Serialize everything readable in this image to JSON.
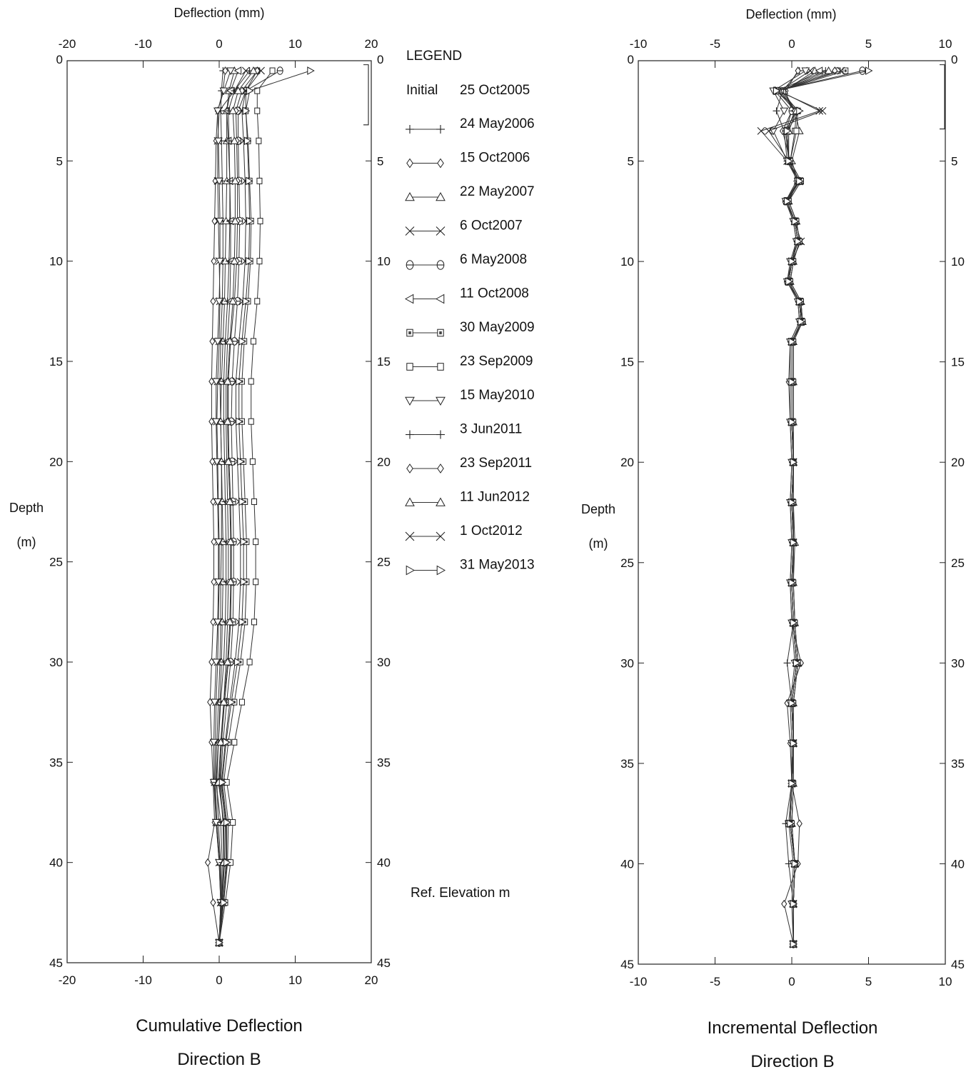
{
  "legend": {
    "title": "LEGEND",
    "initial_label": "Initial",
    "initial_date": "25 Oct2005",
    "entries": [
      {
        "label": "24 May2006",
        "marker": "plus"
      },
      {
        "label": "15 Oct2006",
        "marker": "diamond"
      },
      {
        "label": "22 May2007",
        "marker": "triangle-up"
      },
      {
        "label": "6 Oct2007",
        "marker": "x"
      },
      {
        "label": "6 May2008",
        "marker": "octagon"
      },
      {
        "label": "11 Oct2008",
        "marker": "triangle-left"
      },
      {
        "label": "30 May2009",
        "marker": "square-dot"
      },
      {
        "label": "23 Sep2009",
        "marker": "square"
      },
      {
        "label": "15 May2010",
        "marker": "triangle-down"
      },
      {
        "label": "3 Jun2011",
        "marker": "plus"
      },
      {
        "label": "23 Sep2011",
        "marker": "diamond"
      },
      {
        "label": "11 Jun2012",
        "marker": "triangle-up"
      },
      {
        "label": "1 Oct2012",
        "marker": "x"
      },
      {
        "label": "31 May2013",
        "marker": "triangle-right"
      }
    ],
    "ref_elevation": "Ref. Elevation m"
  },
  "chart_data": [
    {
      "type": "line",
      "title": "Cumulative Deflection",
      "subtitle": "Direction  B",
      "xlabel": "Deflection (mm)",
      "ylabel": "Depth",
      "ylabel_unit": "(m)",
      "xlim": [
        -20,
        20
      ],
      "ylim": [
        0,
        45
      ],
      "y_inverted": true,
      "xticks": [
        -20,
        -10,
        0,
        10,
        20
      ],
      "yticks": [
        0,
        5,
        10,
        15,
        20,
        25,
        30,
        35,
        40,
        45
      ],
      "grid": false,
      "bracket_depth_range": [
        0.2,
        3.2
      ],
      "depth": [
        0.5,
        1.5,
        2.5,
        4,
        6,
        8,
        10,
        12,
        14,
        16,
        18,
        20,
        22,
        24,
        26,
        28,
        30,
        32,
        34,
        36,
        38,
        40,
        42,
        44
      ],
      "series": [
        {
          "name": "24 May2006",
          "values": [
            0.5,
            0.3,
            0.2,
            0.3,
            0.4,
            0.5,
            0.5,
            0.4,
            0.2,
            0.1,
            0.2,
            0.3,
            0.3,
            0.3,
            0.2,
            0.2,
            0.1,
            -0.1,
            -0.3,
            -0.5,
            -0.3,
            0.1,
            0.2,
            0
          ]
        },
        {
          "name": "15 Oct2006",
          "values": [
            0.8,
            0.5,
            -0.2,
            -0.4,
            -0.5,
            -0.6,
            -0.7,
            -0.8,
            -0.9,
            -1.0,
            -1.0,
            -0.9,
            -0.8,
            -0.7,
            -0.7,
            -0.8,
            -1.0,
            -1.2,
            -1.0,
            -0.8,
            -0.6,
            -1.5,
            -0.8,
            0
          ]
        },
        {
          "name": "22 May2007",
          "values": [
            2.0,
            1.3,
            1.0,
            1.0,
            1.0,
            0.9,
            0.8,
            0.7,
            0.5,
            0.3,
            0.2,
            0.3,
            0.4,
            0.5,
            0.5,
            0.4,
            0.3,
            0.1,
            -0.1,
            -0.3,
            -0.1,
            0.2,
            0.3,
            0
          ]
        },
        {
          "name": "6 Oct2007",
          "values": [
            3.5,
            2.0,
            0.0,
            -0.2,
            -0.2,
            -0.1,
            0.0,
            0.1,
            0.0,
            -0.2,
            -0.3,
            -0.2,
            -0.1,
            0.0,
            0.0,
            -0.1,
            -0.2,
            -0.4,
            -0.5,
            -0.6,
            -0.4,
            0.0,
            0.2,
            0
          ]
        },
        {
          "name": "6 May2008",
          "values": [
            8.0,
            3.5,
            2.5,
            2.5,
            2.6,
            2.7,
            2.6,
            2.4,
            2.0,
            1.7,
            1.6,
            1.7,
            1.8,
            1.9,
            1.9,
            1.8,
            1.5,
            1.0,
            0.5,
            0.2,
            0.8,
            0.7,
            0.4,
            0
          ]
        },
        {
          "name": "11 Oct2008",
          "values": [
            2.5,
            1.5,
            1.0,
            1.2,
            1.4,
            1.5,
            1.5,
            1.4,
            1.1,
            0.9,
            0.9,
            1.0,
            1.1,
            1.2,
            1.2,
            1.1,
            0.9,
            0.6,
            0.3,
            0.1,
            0.5,
            0.6,
            0.3,
            0
          ]
        },
        {
          "name": "30 May2009",
          "values": [
            5.0,
            3.5,
            3.5,
            3.8,
            4.0,
            4.2,
            4.1,
            3.8,
            3.3,
            3.0,
            3.0,
            3.2,
            3.4,
            3.6,
            3.6,
            3.4,
            2.8,
            2.0,
            1.2,
            0.6,
            1.2,
            1.1,
            0.6,
            0
          ]
        },
        {
          "name": "23 Sep2009",
          "values": [
            7.0,
            5.0,
            5.0,
            5.2,
            5.3,
            5.4,
            5.3,
            5.0,
            4.5,
            4.2,
            4.2,
            4.4,
            4.6,
            4.8,
            4.8,
            4.6,
            4.0,
            3.0,
            2.0,
            1.0,
            1.8,
            1.5,
            0.8,
            0
          ]
        },
        {
          "name": "15 May2010",
          "values": [
            1.5,
            0.6,
            -0.2,
            -0.1,
            0.0,
            0.1,
            0.1,
            0.0,
            -0.2,
            -0.4,
            -0.4,
            -0.3,
            -0.2,
            -0.1,
            -0.1,
            -0.2,
            -0.4,
            -0.6,
            -0.7,
            -0.7,
            -0.4,
            0.0,
            0.2,
            0
          ]
        },
        {
          "name": "3 Jun2011",
          "values": [
            4.0,
            2.0,
            1.2,
            1.3,
            1.4,
            1.4,
            1.3,
            1.1,
            0.8,
            0.6,
            0.6,
            0.7,
            0.8,
            0.9,
            0.9,
            0.8,
            0.6,
            0.2,
            -0.1,
            -0.4,
            0.2,
            0.4,
            0.3,
            0
          ]
        },
        {
          "name": "23 Sep2011",
          "values": [
            5.0,
            3.0,
            2.2,
            2.3,
            2.4,
            2.4,
            2.3,
            2.0,
            1.5,
            1.2,
            1.2,
            1.3,
            1.5,
            1.6,
            1.6,
            1.5,
            1.2,
            0.7,
            0.3,
            0.0,
            0.6,
            0.6,
            0.4,
            0
          ]
        },
        {
          "name": "11 Jun2012",
          "values": [
            4.5,
            2.5,
            1.8,
            2.0,
            2.1,
            2.1,
            2.0,
            1.8,
            1.4,
            1.1,
            1.1,
            1.2,
            1.4,
            1.5,
            1.5,
            1.4,
            1.1,
            0.6,
            0.2,
            -0.1,
            0.6,
            0.6,
            0.4,
            0
          ]
        },
        {
          "name": "1 Oct2012",
          "values": [
            5.5,
            3.5,
            3.0,
            3.2,
            3.4,
            3.5,
            3.4,
            3.1,
            2.6,
            2.2,
            2.2,
            2.4,
            2.6,
            2.8,
            2.8,
            2.6,
            2.1,
            1.4,
            0.8,
            0.3,
            0.9,
            0.9,
            0.5,
            0
          ]
        },
        {
          "name": "31 May2013",
          "values": [
            12.0,
            4.0,
            3.5,
            3.7,
            3.9,
            4.0,
            3.9,
            3.5,
            3.0,
            2.6,
            2.6,
            2.8,
            3.0,
            3.2,
            3.2,
            3.0,
            2.4,
            1.6,
            0.9,
            0.4,
            1.0,
            1.0,
            0.6,
            0
          ]
        }
      ]
    },
    {
      "type": "line",
      "title": "Incremental Deflection",
      "subtitle": "Direction  B",
      "xlabel": "Deflection (mm)",
      "ylabel": "Depth",
      "ylabel_unit": "(m)",
      "xlim": [
        -10,
        10
      ],
      "ylim": [
        0,
        45
      ],
      "y_inverted": true,
      "xticks": [
        -10,
        -5,
        0,
        5,
        10
      ],
      "yticks": [
        0,
        5,
        10,
        15,
        20,
        25,
        30,
        35,
        40,
        45
      ],
      "grid": false,
      "bracket_depth_range": [
        0.2,
        3.4
      ],
      "depth": [
        0.5,
        1.5,
        2.5,
        3.5,
        5,
        6,
        7,
        8,
        9,
        10,
        11,
        12,
        13,
        14,
        16,
        18,
        20,
        22,
        24,
        26,
        28,
        30,
        32,
        34,
        36,
        38,
        40,
        42,
        44
      ],
      "series": [
        {
          "name": "24 May2006",
          "values": [
            0.5,
            -0.6,
            -1.0,
            -0.5,
            -0.3,
            0.5,
            -0.3,
            0.2,
            0.4,
            0.0,
            -0.2,
            0.5,
            0.6,
            0.0,
            0.0,
            0.0,
            0.1,
            0.0,
            0.1,
            0.0,
            0.1,
            0.3,
            0.0,
            0.1,
            0.0,
            -0.1,
            0.2,
            0.1,
            0.1
          ]
        },
        {
          "name": "15 Oct2006",
          "values": [
            0.4,
            -0.4,
            0.0,
            -0.6,
            -0.1,
            0.3,
            -0.4,
            0.1,
            0.3,
            0.0,
            -0.3,
            0.4,
            0.5,
            -0.1,
            -0.2,
            -0.1,
            0.0,
            -0.1,
            0.0,
            -0.1,
            0.0,
            0.6,
            -0.3,
            -0.1,
            0.0,
            0.5,
            0.4,
            -0.5,
            0.1
          ]
        },
        {
          "name": "22 May2007",
          "values": [
            1.5,
            -0.5,
            0.2,
            0.5,
            0.0,
            0.4,
            -0.2,
            0.3,
            0.5,
            0.1,
            -0.1,
            0.6,
            0.7,
            0.1,
            0.1,
            0.1,
            0.1,
            0.1,
            0.2,
            0.1,
            0.2,
            0.4,
            0.1,
            0.1,
            0.1,
            0.0,
            0.2,
            0.1,
            0.1
          ]
        },
        {
          "name": "6 Oct2007",
          "values": [
            1.2,
            -0.8,
            1.8,
            -2.0,
            -0.3,
            0.4,
            -0.3,
            0.2,
            0.6,
            0.0,
            -0.2,
            0.5,
            0.6,
            0.0,
            0.0,
            0.0,
            0.1,
            0.0,
            0.1,
            0.0,
            0.1,
            0.3,
            0.0,
            0.1,
            0.0,
            -0.1,
            0.2,
            0.1,
            0.1
          ]
        },
        {
          "name": "6 May2008",
          "values": [
            4.6,
            -1.1,
            0.0,
            -0.4,
            -0.2,
            0.5,
            -0.4,
            0.2,
            0.4,
            0.0,
            -0.3,
            0.5,
            0.7,
            0.0,
            0.0,
            0.0,
            0.1,
            0.0,
            0.1,
            0.0,
            0.1,
            0.3,
            0.0,
            0.1,
            0.0,
            -0.1,
            0.2,
            0.1,
            0.1
          ]
        },
        {
          "name": "11 Oct2008",
          "values": [
            1.8,
            -0.6,
            0.2,
            -0.3,
            -0.2,
            0.5,
            -0.3,
            0.2,
            0.4,
            0.0,
            -0.2,
            0.5,
            0.6,
            0.0,
            0.0,
            0.0,
            0.1,
            0.0,
            0.1,
            0.0,
            0.1,
            0.3,
            0.0,
            0.1,
            0.0,
            -0.1,
            0.2,
            0.1,
            0.1
          ]
        },
        {
          "name": "30 May2009",
          "values": [
            3.5,
            -0.8,
            0.3,
            0.2,
            -0.1,
            0.6,
            -0.2,
            0.3,
            0.5,
            0.1,
            -0.1,
            0.6,
            0.7,
            0.1,
            0.1,
            0.1,
            0.1,
            0.1,
            0.1,
            0.1,
            0.2,
            0.4,
            0.1,
            0.1,
            0.1,
            0.0,
            0.2,
            0.1,
            0.1
          ]
        },
        {
          "name": "23 Sep2009",
          "values": [
            3.0,
            -0.7,
            0.4,
            0.3,
            -0.1,
            0.6,
            -0.2,
            0.3,
            0.5,
            0.1,
            -0.1,
            0.6,
            0.7,
            0.1,
            0.1,
            0.1,
            0.1,
            0.1,
            0.1,
            0.1,
            0.2,
            0.4,
            0.1,
            0.1,
            0.1,
            0.0,
            0.2,
            0.1,
            0.1
          ]
        },
        {
          "name": "15 May2010",
          "values": [
            0.9,
            -1.2,
            -0.5,
            -1.2,
            -0.3,
            0.4,
            -0.4,
            0.1,
            0.3,
            -0.1,
            -0.3,
            0.4,
            0.5,
            -0.1,
            -0.1,
            -0.1,
            0.0,
            -0.1,
            0.0,
            -0.1,
            0.0,
            0.2,
            -0.1,
            0.0,
            0.0,
            -0.2,
            0.1,
            0.0,
            0.1
          ]
        },
        {
          "name": "3 Jun2011",
          "values": [
            2.2,
            -1.0,
            0.3,
            -0.4,
            -0.2,
            0.5,
            -0.3,
            0.2,
            0.4,
            0.0,
            -0.2,
            0.5,
            0.6,
            0.0,
            0.0,
            0.0,
            0.1,
            0.0,
            0.1,
            0.0,
            0.1,
            -0.3,
            0.0,
            0.1,
            0.0,
            -0.4,
            -0.2,
            0.1,
            0.1
          ]
        },
        {
          "name": "23 Sep2011",
          "values": [
            2.8,
            -0.9,
            0.2,
            -0.3,
            -0.2,
            0.5,
            -0.3,
            0.2,
            0.4,
            0.0,
            -0.2,
            0.5,
            0.6,
            0.0,
            0.0,
            0.0,
            0.1,
            0.0,
            0.1,
            0.0,
            0.1,
            0.3,
            0.0,
            0.1,
            0.0,
            -0.1,
            0.2,
            0.1,
            0.1
          ]
        },
        {
          "name": "11 Jun2012",
          "values": [
            2.4,
            -0.8,
            0.3,
            -0.2,
            -0.2,
            0.5,
            -0.3,
            0.2,
            0.4,
            0.0,
            -0.2,
            0.5,
            0.6,
            0.0,
            0.0,
            0.0,
            0.1,
            0.0,
            0.1,
            0.0,
            0.1,
            0.3,
            0.0,
            0.1,
            0.0,
            -0.1,
            0.2,
            0.1,
            0.1
          ]
        },
        {
          "name": "1 Oct2012",
          "values": [
            3.2,
            -0.9,
            2.0,
            -1.5,
            -0.2,
            0.5,
            -0.3,
            0.2,
            0.4,
            0.0,
            -0.2,
            0.5,
            0.6,
            0.0,
            0.0,
            0.0,
            0.1,
            0.0,
            0.1,
            0.0,
            0.1,
            0.3,
            0.0,
            0.1,
            0.0,
            -0.1,
            0.2,
            0.1,
            0.1
          ]
        },
        {
          "name": "31 May2013",
          "values": [
            5.0,
            -1.0,
            0.5,
            -0.3,
            -0.2,
            0.5,
            -0.3,
            0.2,
            0.4,
            0.0,
            -0.2,
            0.5,
            0.6,
            0.0,
            0.0,
            0.0,
            0.1,
            0.0,
            0.1,
            0.0,
            0.1,
            0.3,
            0.0,
            0.1,
            0.0,
            -0.1,
            0.2,
            0.1,
            0.1
          ]
        }
      ]
    }
  ]
}
